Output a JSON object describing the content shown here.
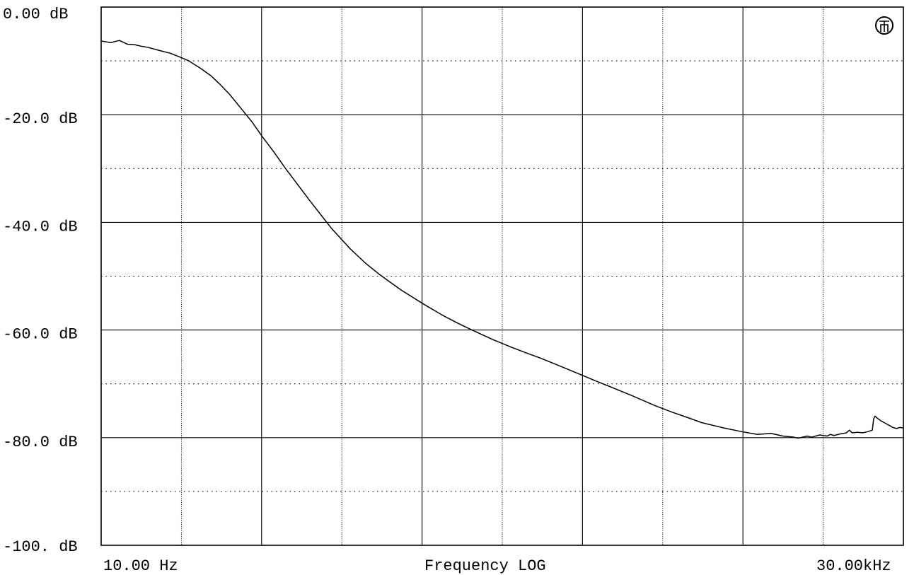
{
  "chart_data": {
    "type": "line",
    "title": "",
    "xlabel": "Frequency LOG",
    "ylabel": "",
    "x_scale": "log",
    "xlim": [
      10,
      30000
    ],
    "ylim": [
      -100,
      0
    ],
    "x_tick_labels": [
      "10.00 Hz",
      "30.00kHz"
    ],
    "y_tick_labels": [
      "0.00 dB",
      "-20.0 dB",
      "-40.0 dB",
      "-60.0 dB",
      "-80.0 dB",
      "-100. dB"
    ],
    "y_ticks": [
      0,
      -20,
      -40,
      -60,
      -80,
      -100
    ],
    "grid": true,
    "legend": "none",
    "logo_icon": "ap-logo-icon",
    "series": [
      {
        "x": [
          10,
          11,
          12,
          13,
          14,
          15,
          16,
          18,
          20,
          22,
          24,
          27,
          30,
          33,
          36,
          40,
          45,
          50,
          56,
          63,
          70,
          80,
          90,
          100,
          120,
          140,
          160,
          180,
          200,
          250,
          300,
          350,
          400,
          500,
          600,
          700,
          800,
          1000,
          1200,
          1400,
          1600,
          2000,
          2500,
          3000,
          3500,
          4000,
          5000,
          6000,
          7000,
          8000,
          9000,
          10000,
          10500,
          11000,
          11500,
          12000,
          13000,
          14000,
          14500,
          15000,
          16000,
          17000,
          17500,
          18000,
          19000,
          20000,
          21000,
          22000,
          22300,
          22600,
          23000,
          24000,
          25000,
          26000,
          27000,
          28000,
          29000,
          30000
        ],
        "values": [
          -6.3,
          -6.6,
          -6.2,
          -6.9,
          -7.0,
          -7.3,
          -7.5,
          -8.1,
          -8.6,
          -9.3,
          -10.0,
          -11.4,
          -12.8,
          -14.5,
          -16.2,
          -18.6,
          -21.3,
          -24.1,
          -26.9,
          -30.0,
          -32.6,
          -35.9,
          -38.7,
          -41.2,
          -44.9,
          -47.6,
          -49.6,
          -51.2,
          -52.6,
          -55.2,
          -57.2,
          -58.7,
          -59.9,
          -61.8,
          -63.2,
          -64.3,
          -65.2,
          -66.9,
          -68.3,
          -69.5,
          -70.5,
          -72.2,
          -74.0,
          -75.3,
          -76.3,
          -77.2,
          -78.2,
          -78.9,
          -79.4,
          -79.2,
          -79.7,
          -79.9,
          -80.1,
          -79.9,
          -79.7,
          -79.9,
          -79.5,
          -79.7,
          -79.4,
          -79.6,
          -79.3,
          -79.1,
          -78.6,
          -79.1,
          -79.0,
          -79.1,
          -78.9,
          -78.6,
          -76.5,
          -76.0,
          -76.3,
          -76.9,
          -77.3,
          -77.7,
          -78.1,
          -78.3,
          -78.1,
          -78.2
        ]
      }
    ]
  }
}
